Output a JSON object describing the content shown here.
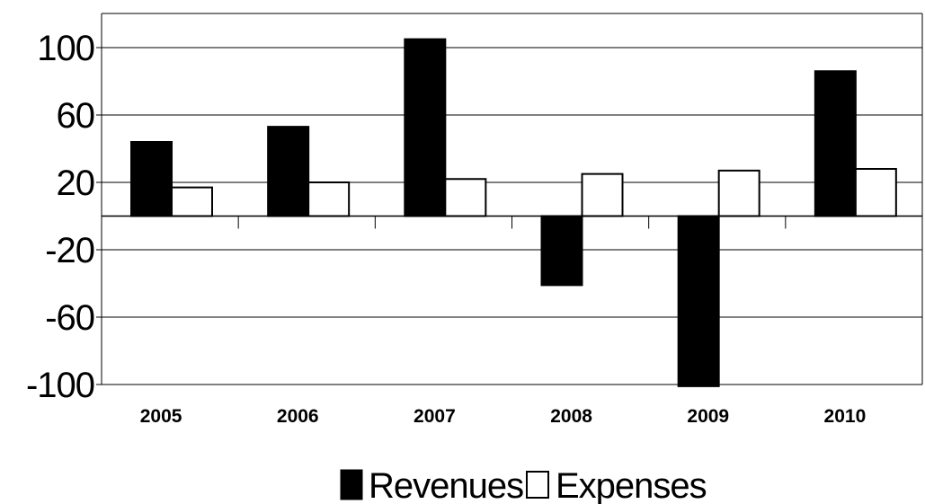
{
  "chart_data": {
    "type": "bar",
    "title": "",
    "xlabel": "",
    "ylabel": "",
    "categories": [
      "2005",
      "2006",
      "2007",
      "2008",
      "2009",
      "2010"
    ],
    "series": [
      {
        "name": "Revenues",
        "color": "#000000",
        "values": [
          44,
          53,
          105,
          -41,
          -101,
          86
        ]
      },
      {
        "name": "Expenses",
        "color": "#ffffff",
        "values": [
          17,
          20,
          22,
          25,
          27,
          28
        ]
      }
    ],
    "ylim": [
      -100,
      120
    ],
    "yticks": [
      100,
      60,
      20,
      -20,
      -60,
      -100
    ],
    "ytick_labels": [
      "100",
      "60",
      "20",
      "-20",
      "-60",
      "-100"
    ],
    "grid": true,
    "legend_position": "bottom"
  }
}
